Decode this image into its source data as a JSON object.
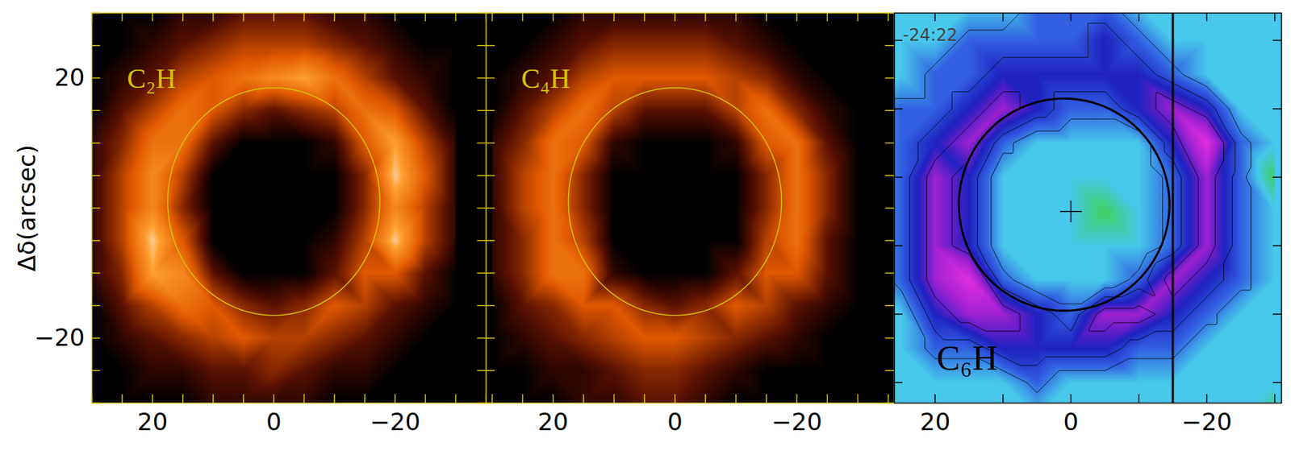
{
  "chart_data": [
    {
      "type": "heatmap",
      "title": "C₂H",
      "ylabel": "Δδ(arcsec)",
      "xlim": [
        30,
        -35
      ],
      "ylim": [
        -30,
        30
      ],
      "xticks": [
        20,
        0,
        -20
      ],
      "yticks": [
        -20,
        20
      ],
      "xticks_minor": [
        30,
        25,
        20,
        15,
        10,
        5,
        0,
        -5,
        -10,
        -15,
        -20,
        -25,
        -30,
        -35
      ],
      "yticks_minor": [
        -30,
        -25,
        -20,
        -15,
        -10,
        -5,
        0,
        5,
        10,
        15,
        20,
        25,
        30
      ],
      "color": "#d4c400",
      "colors": [
        "#000000",
        "#5a1000",
        "#e05a00",
        "#ffa030",
        "#ffffff"
      ],
      "color_levels": [
        0,
        2,
        5,
        8,
        10
      ],
      "circle": {
        "center": [
          0,
          1
        ],
        "radius": 17.5
      },
      "x": [
        30,
        25,
        20,
        15,
        10,
        5,
        0,
        -5,
        -10,
        -15,
        -20,
        -25,
        -30
      ],
      "y": [
        30,
        25,
        20,
        15,
        10,
        5,
        0,
        -5,
        -10,
        -15,
        -20,
        -25,
        -30
      ],
      "intensity": [
        [
          0,
          0,
          0,
          1,
          1,
          2,
          2,
          2,
          1,
          1,
          0,
          0,
          0
        ],
        [
          0,
          0,
          1,
          2,
          3,
          4,
          4,
          4,
          3,
          2,
          1,
          0,
          0
        ],
        [
          0,
          1,
          2,
          4,
          5,
          6,
          7,
          8,
          6,
          4,
          2,
          1,
          0
        ],
        [
          0,
          2,
          4,
          6,
          5,
          3,
          2,
          3,
          4,
          6,
          5,
          2,
          0
        ],
        [
          1,
          3,
          6,
          6,
          2,
          0,
          0,
          0,
          1,
          5,
          8,
          4,
          1
        ],
        [
          1,
          4,
          7,
          4,
          0,
          0,
          0,
          0,
          0,
          3,
          9,
          5,
          1
        ],
        [
          1,
          4,
          7,
          3,
          0,
          0,
          0,
          0,
          0,
          3,
          7,
          4,
          1
        ],
        [
          1,
          4,
          9,
          5,
          0,
          0,
          0,
          0,
          1,
          4,
          9,
          4,
          1
        ],
        [
          1,
          3,
          8,
          7,
          2,
          0,
          0,
          0,
          2,
          5,
          5,
          2,
          0
        ],
        [
          0,
          2,
          4,
          6,
          5,
          3,
          2,
          3,
          5,
          4,
          2,
          1,
          0
        ],
        [
          0,
          1,
          2,
          3,
          4,
          5,
          4,
          4,
          3,
          2,
          1,
          0,
          0
        ],
        [
          0,
          0,
          1,
          1,
          2,
          2,
          3,
          2,
          1,
          1,
          0,
          0,
          0
        ],
        [
          0,
          0,
          0,
          0,
          1,
          1,
          1,
          1,
          0,
          0,
          0,
          0,
          0
        ]
      ]
    },
    {
      "type": "heatmap",
      "title": "C₄H",
      "tick_labels": "x",
      "xlim": [
        31,
        -36
      ],
      "ylim": [
        -30,
        30
      ],
      "xticks": [
        20,
        0,
        -20
      ],
      "xticks_minor": [
        30,
        25,
        20,
        15,
        10,
        5,
        0,
        -5,
        -10,
        -15,
        -20,
        -25,
        -30,
        -35
      ],
      "yticks_minor": [
        -30,
        -25,
        -20,
        -15,
        -10,
        -5,
        0,
        5,
        10,
        15,
        20,
        25,
        30
      ],
      "color": "#d4c400",
      "colors": [
        "#000000",
        "#5a1000",
        "#e05a00",
        "#ffa030",
        "#ffffff"
      ],
      "color_levels": [
        0,
        2,
        5,
        8,
        10
      ],
      "circle": {
        "center": [
          0,
          1
        ],
        "radius": 17.5
      },
      "x": [
        30,
        25,
        20,
        15,
        10,
        5,
        0,
        -5,
        -10,
        -15,
        -20,
        -25,
        -30
      ],
      "y": [
        30,
        25,
        20,
        15,
        10,
        5,
        0,
        -5,
        -10,
        -15,
        -20,
        -25,
        -30
      ],
      "intensity": [
        [
          0,
          0,
          0,
          1,
          1,
          1,
          1,
          1,
          1,
          0,
          0,
          0,
          0
        ],
        [
          0,
          0,
          1,
          2,
          3,
          3,
          3,
          3,
          2,
          1,
          0,
          0,
          0
        ],
        [
          0,
          1,
          2,
          4,
          5,
          5,
          5,
          5,
          4,
          3,
          1,
          0,
          0
        ],
        [
          0,
          2,
          4,
          6,
          4,
          2,
          2,
          2,
          4,
          6,
          3,
          1,
          0
        ],
        [
          1,
          3,
          6,
          5,
          1,
          0,
          0,
          0,
          1,
          5,
          6,
          2,
          0
        ],
        [
          1,
          4,
          6,
          3,
          0,
          0,
          0,
          0,
          0,
          3,
          6,
          3,
          0
        ],
        [
          1,
          4,
          6,
          3,
          0,
          0,
          0,
          0,
          0,
          3,
          6,
          3,
          0
        ],
        [
          1,
          3,
          6,
          4,
          0,
          0,
          0,
          0,
          0,
          4,
          6,
          2,
          0
        ],
        [
          1,
          3,
          6,
          6,
          1,
          0,
          0,
          0,
          2,
          5,
          5,
          2,
          0
        ],
        [
          0,
          2,
          3,
          5,
          5,
          3,
          2,
          3,
          5,
          4,
          2,
          1,
          0
        ],
        [
          0,
          1,
          2,
          3,
          4,
          5,
          5,
          4,
          3,
          2,
          1,
          0,
          0
        ],
        [
          0,
          0,
          1,
          1,
          2,
          3,
          3,
          2,
          1,
          0,
          0,
          0,
          0
        ],
        [
          0,
          0,
          0,
          1,
          1,
          2,
          2,
          1,
          0,
          0,
          0,
          0,
          0
        ]
      ]
    },
    {
      "type": "heatmap",
      "title": "C₆H",
      "tick_labels": "x",
      "annotation": "-24:22",
      "xlim": [
        26,
        -31
      ],
      "ylim": [
        -28,
        29
      ],
      "xticks": [
        20,
        0,
        -20
      ],
      "xticks_minor": [
        20,
        10,
        0,
        -10,
        -20,
        -30
      ],
      "yticks_minor": [
        -25,
        -15,
        -5,
        5,
        15,
        25
      ],
      "color": "#000000",
      "colors": [
        "#40d060",
        "#48c8ec",
        "#3060e0",
        "#2020c0",
        "#a020d0",
        "#e030e0"
      ],
      "color_levels": [
        -1,
        0,
        1,
        2,
        3,
        4
      ],
      "contours": [
        0.7,
        1.5,
        2.5
      ],
      "circle": {
        "center": [
          1,
          1
        ],
        "radius": 15.5
      },
      "cross": [
        0,
        0
      ],
      "vertical_line_x": -15,
      "x": [
        30,
        25,
        20,
        15,
        10,
        5,
        0,
        -5,
        -10,
        -15,
        -20,
        -25,
        -30
      ],
      "y": [
        30,
        25,
        20,
        15,
        10,
        5,
        0,
        -5,
        -10,
        -15,
        -20,
        -25,
        -30
      ],
      "intensity": [
        [
          0,
          0,
          0,
          0,
          0,
          1,
          1,
          1,
          0,
          0,
          0,
          0,
          0
        ],
        [
          0,
          0,
          0,
          1,
          1,
          1,
          1,
          2,
          1,
          0,
          0,
          0,
          0
        ],
        [
          0,
          0,
          1,
          1,
          2,
          2,
          2,
          2,
          2,
          1,
          0,
          0,
          0
        ],
        [
          0,
          1,
          1,
          2,
          3,
          2,
          1,
          1,
          2,
          3,
          2,
          0,
          0
        ],
        [
          0,
          1,
          2,
          3,
          1,
          0,
          0,
          0,
          0,
          2,
          4,
          1,
          0
        ],
        [
          0,
          1,
          3,
          2,
          0,
          0,
          0,
          0,
          0,
          1,
          3,
          1,
          -1
        ],
        [
          0,
          1,
          3,
          2,
          0,
          0,
          0,
          -1,
          0,
          1,
          3,
          1,
          0
        ],
        [
          0,
          1,
          3,
          2,
          0,
          0,
          0,
          0,
          0,
          1,
          3,
          1,
          0
        ],
        [
          0,
          1,
          3,
          4,
          1,
          0,
          0,
          0,
          1,
          3,
          2,
          1,
          0
        ],
        [
          0,
          0,
          2,
          3,
          3,
          2,
          1,
          3,
          3,
          2,
          1,
          0,
          0
        ],
        [
          0,
          0,
          1,
          1,
          2,
          2,
          2,
          2,
          1,
          1,
          0,
          0,
          0
        ],
        [
          -1,
          0,
          0,
          0,
          0,
          1,
          0,
          0,
          0,
          0,
          0,
          0,
          0
        ],
        [
          0,
          0,
          0,
          0,
          0,
          0,
          0,
          0,
          0,
          0,
          0,
          0,
          -1
        ]
      ]
    }
  ]
}
